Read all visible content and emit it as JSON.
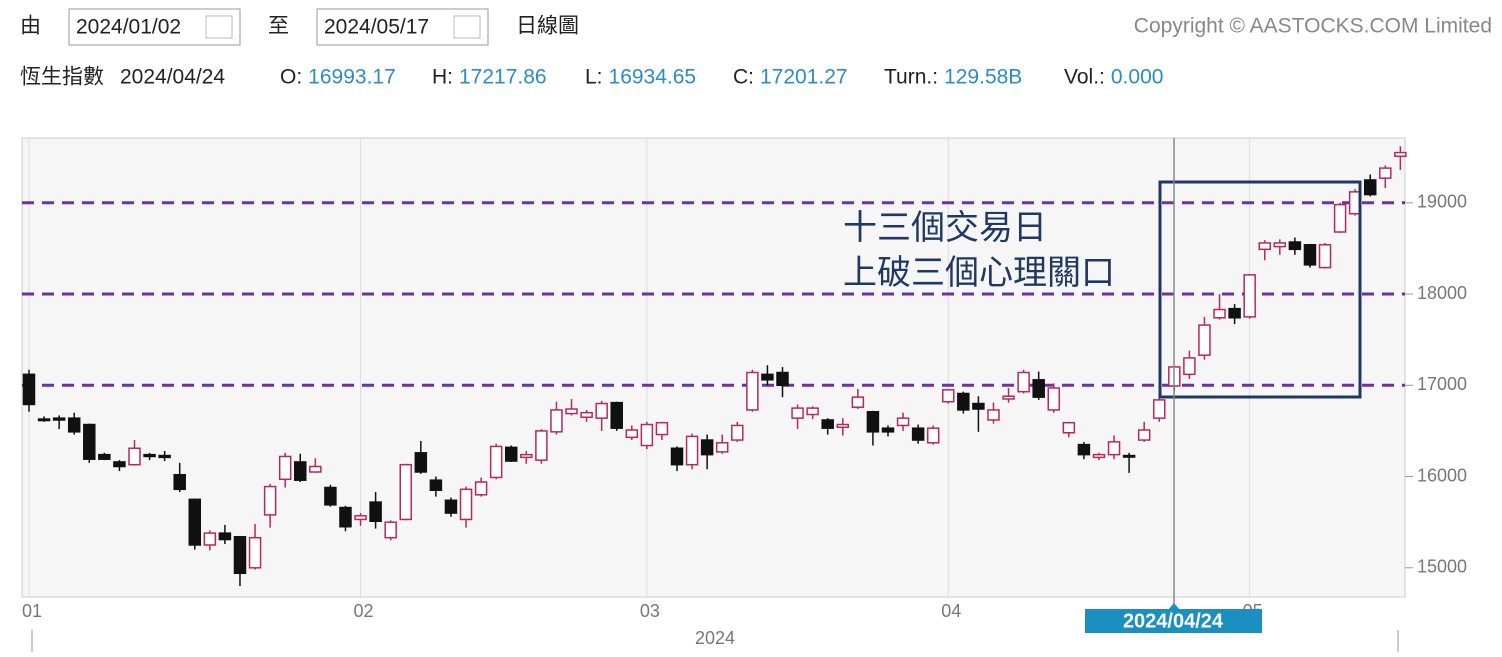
{
  "toolbar": {
    "from_label": "由",
    "from_date": "2024/01/02",
    "to_label": "至",
    "to_date": "2024/05/17",
    "chart_type": "日線圖",
    "copyright": "Copyright © AASTOCKS.COM Limited"
  },
  "quote": {
    "name": "恆生指數",
    "date": "2024/04/24",
    "fields": [
      {
        "label": "O:",
        "value": "16993.17"
      },
      {
        "label": "H:",
        "value": "17217.86"
      },
      {
        "label": "L:",
        "value": "16934.65"
      },
      {
        "label": "C:",
        "value": "17201.27"
      },
      {
        "label": "Turn.:",
        "value": "129.58B"
      },
      {
        "label": "Vol.:",
        "value": "0.000"
      }
    ]
  },
  "chart_data": {
    "type": "candlestick",
    "categories": [
      "01",
      null,
      null,
      null,
      null,
      null,
      null,
      null,
      null,
      null,
      null,
      null,
      null,
      null,
      null,
      null,
      null,
      null,
      null,
      null,
      null,
      null,
      "02",
      null,
      null,
      null,
      null,
      null,
      null,
      null,
      null,
      null,
      null,
      null,
      null,
      null,
      null,
      null,
      null,
      null,
      null,
      "03",
      null,
      null,
      null,
      null,
      null,
      null,
      null,
      null,
      null,
      null,
      null,
      null,
      null,
      null,
      null,
      null,
      null,
      null,
      null,
      "04",
      null,
      null,
      null,
      null,
      null,
      null,
      null,
      null,
      null,
      null,
      null,
      null,
      null,
      null,
      null,
      null,
      null,
      null,
      null,
      "05",
      null,
      null,
      null,
      null,
      null,
      null,
      null,
      null,
      null,
      null
    ],
    "open": [
      17120,
      16630,
      16640,
      16640,
      16570,
      16240,
      16160,
      16130,
      16240,
      16230,
      16020,
      15750,
      15250,
      15380,
      15340,
      15000,
      15580,
      15970,
      16160,
      16050,
      15880,
      15660,
      15530,
      15720,
      15330,
      15530,
      16260,
      15960,
      15740,
      15530,
      15800,
      15990,
      16320,
      16210,
      16180,
      16490,
      16690,
      16650,
      16640,
      16810,
      16430,
      16340,
      16460,
      16310,
      16130,
      16400,
      16270,
      16400,
      16730,
      17120,
      17140,
      16640,
      16680,
      16620,
      16540,
      16760,
      16710,
      16530,
      16560,
      16530,
      16370,
      16820,
      16910,
      16800,
      16620,
      16850,
      16930,
      17060,
      16730,
      16480,
      16350,
      16210,
      16240,
      16230,
      16400,
      16640,
      16993.17,
      17120,
      17330,
      17740,
      17840,
      17750,
      18490,
      18520,
      18570,
      18540,
      18290,
      18680,
      18880,
      19250,
      19270,
      19510
    ],
    "high": [
      17170,
      16660,
      16670,
      16700,
      16580,
      16260,
      16180,
      16400,
      16260,
      16280,
      16150,
      15760,
      15410,
      15470,
      15350,
      15480,
      15920,
      16260,
      16250,
      16200,
      15910,
      15680,
      15600,
      15830,
      15520,
      16140,
      16390,
      16000,
      15770,
      15890,
      15990,
      16360,
      16340,
      16280,
      16520,
      16820,
      16850,
      16730,
      16830,
      16820,
      16560,
      16600,
      16600,
      16330,
      16470,
      16460,
      16460,
      16600,
      17170,
      17220,
      17200,
      16790,
      16770,
      16640,
      16640,
      16960,
      16720,
      16560,
      16700,
      16570,
      16560,
      16960,
      16930,
      16880,
      16810,
      16970,
      17170,
      17150,
      17020,
      16600,
      16380,
      16260,
      16450,
      16260,
      16600,
      16900,
      17217.86,
      17380,
      17750,
      18000,
      17890,
      18220,
      18590,
      18600,
      18620,
      18550,
      18560,
      19000,
      19150,
      19310,
      19410,
      19620
    ],
    "low": [
      16710,
      16600,
      16520,
      16460,
      16150,
      16180,
      16060,
      16120,
      16180,
      16170,
      15830,
      15200,
      15190,
      15260,
      14800,
      14980,
      15440,
      15880,
      15940,
      16040,
      15670,
      15400,
      15460,
      15430,
      15300,
      15520,
      16030,
      15780,
      15560,
      15440,
      15780,
      15970,
      16160,
      16140,
      16140,
      16460,
      16670,
      16600,
      16500,
      16500,
      16400,
      16300,
      16400,
      16060,
      16080,
      16080,
      16250,
      16380,
      16710,
      17000,
      16870,
      16520,
      16630,
      16460,
      16450,
      16740,
      16340,
      16440,
      16500,
      16360,
      16350,
      16800,
      16690,
      16490,
      16580,
      16810,
      16910,
      16840,
      16700,
      16430,
      16190,
      16180,
      16190,
      16040,
      16380,
      16600,
      16934.65,
      17070,
      17280,
      17720,
      17670,
      17730,
      18370,
      18430,
      18430,
      18290,
      18280,
      18670,
      18860,
      19070,
      19160,
      19360
    ],
    "close": [
      16790,
      16620,
      16620,
      16490,
      16190,
      16190,
      16110,
      16310,
      16220,
      16210,
      15860,
      15250,
      15380,
      15310,
      14940,
      15330,
      15890,
      16220,
      15960,
      16110,
      15690,
      15450,
      15570,
      15510,
      15500,
      16130,
      16050,
      15850,
      15600,
      15860,
      15940,
      16330,
      16170,
      16240,
      16500,
      16730,
      16740,
      16700,
      16800,
      16530,
      16510,
      16570,
      16590,
      16130,
      16440,
      16240,
      16370,
      16560,
      17140,
      17060,
      17000,
      16750,
      16750,
      16530,
      16570,
      16870,
      16490,
      16490,
      16640,
      16400,
      16530,
      16950,
      16730,
      16740,
      16730,
      16880,
      17140,
      16870,
      16970,
      16590,
      16240,
      16240,
      16380,
      16220,
      16510,
      16840,
      17201.27,
      17300,
      17660,
      17830,
      17740,
      18210,
      18560,
      18560,
      18490,
      18320,
      18540,
      18980,
      19120,
      19090,
      19380,
      19550
    ],
    "up_color": "#b8285a",
    "down_color": "#111111",
    "ylim": [
      14680,
      19710
    ],
    "yticks": [
      15000,
      16000,
      17000,
      18000,
      19000
    ],
    "x_year_label": "2024",
    "crosshair_label": "2024/04/24",
    "reference_lines": [
      17000,
      18000,
      19000
    ],
    "reference_color": "#7030a0",
    "annotation": [
      "十三個交易日",
      "上破三個心理關口"
    ]
  }
}
